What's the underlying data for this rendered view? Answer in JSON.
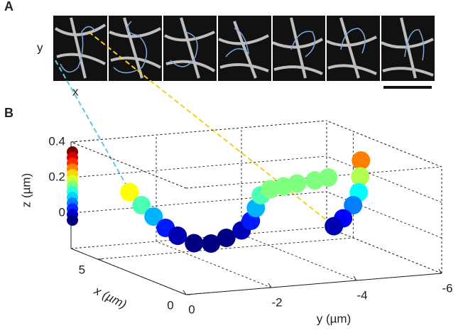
{
  "panel_labels": [
    "A",
    "B"
  ],
  "image_axes": {
    "y": "y",
    "x": "x"
  },
  "chart_data": {
    "type": "scatter3d",
    "xlabel": "x (µm)",
    "ylabel": "y (µm)",
    "zlabel": "z (µm)",
    "x": [
      3.2,
      3.0,
      2.8,
      2.6,
      2.4,
      2.2,
      2.2,
      2.3,
      2.4,
      2.6,
      2.8,
      3.0,
      3.2,
      3.4,
      3.6,
      3.8,
      4.0,
      3.6,
      3.4,
      3.0,
      2.6,
      2.2,
      2.0
    ],
    "y": [
      0,
      -0.2,
      -0.4,
      -0.6,
      -0.8,
      -1.1,
      -1.5,
      -1.9,
      -2.3,
      -2.6,
      -2.8,
      -3.0,
      -3.3,
      -3.7,
      -4.1,
      -4.6,
      -5.0,
      -5.6,
      -5.5,
      -5.3,
      -5.0,
      -4.6,
      -4.3
    ],
    "z": [
      0.25,
      0.18,
      0.12,
      0.06,
      0.02,
      -0.02,
      -0.03,
      -0.01,
      0.02,
      0.06,
      0.12,
      0.18,
      0.2,
      0.2,
      0.2,
      0.2,
      0.2,
      0.3,
      0.22,
      0.15,
      0.1,
      0.05,
      0.02
    ],
    "xlim": [
      0,
      6.5
    ],
    "ylim": [
      0,
      -6
    ],
    "zlim": [
      -0.2,
      0.4
    ],
    "xticks": [
      0,
      5
    ],
    "yticks": [
      0,
      -2,
      -4,
      -6
    ],
    "zticks": [
      0,
      0.2,
      0.4
    ],
    "grid": true
  }
}
